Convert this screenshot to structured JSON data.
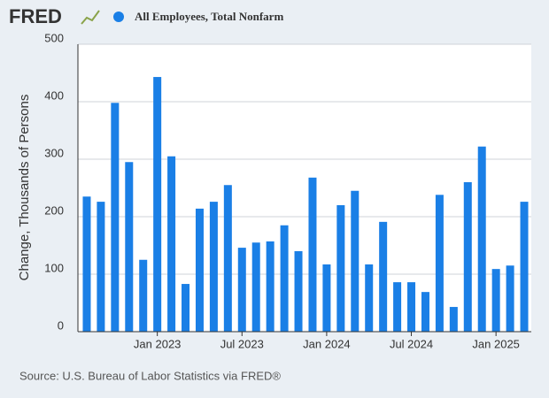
{
  "logo": "FRED",
  "source": "Source: U.S. Bureau of Labor Statistics via FRED®",
  "chart_data": {
    "type": "bar",
    "ylabel": "Change, Thousands of Persons",
    "categories": [
      null,
      null,
      null,
      null,
      null,
      "Jan 2023",
      null,
      null,
      null,
      null,
      null,
      "Jul 2023",
      null,
      null,
      null,
      null,
      null,
      "Jan 2024",
      null,
      null,
      null,
      null,
      null,
      "Jul 2024",
      null,
      null,
      null,
      null,
      null,
      "Jan 2025",
      null,
      null
    ],
    "series": [
      {
        "name": "All Employees, Total Nonfarm",
        "color": "#1a7fe6",
        "values": [
          235,
          226,
          398,
          295,
          125,
          443,
          305,
          83,
          214,
          226,
          255,
          146,
          155,
          157,
          185,
          140,
          268,
          117,
          220,
          245,
          117,
          191,
          86,
          86,
          69,
          238,
          43,
          260,
          322,
          109,
          115,
          226
        ]
      }
    ],
    "ylim": [
      0,
      500
    ],
    "yticks": [
      0,
      100,
      200,
      300,
      400,
      500
    ],
    "grid": true
  }
}
